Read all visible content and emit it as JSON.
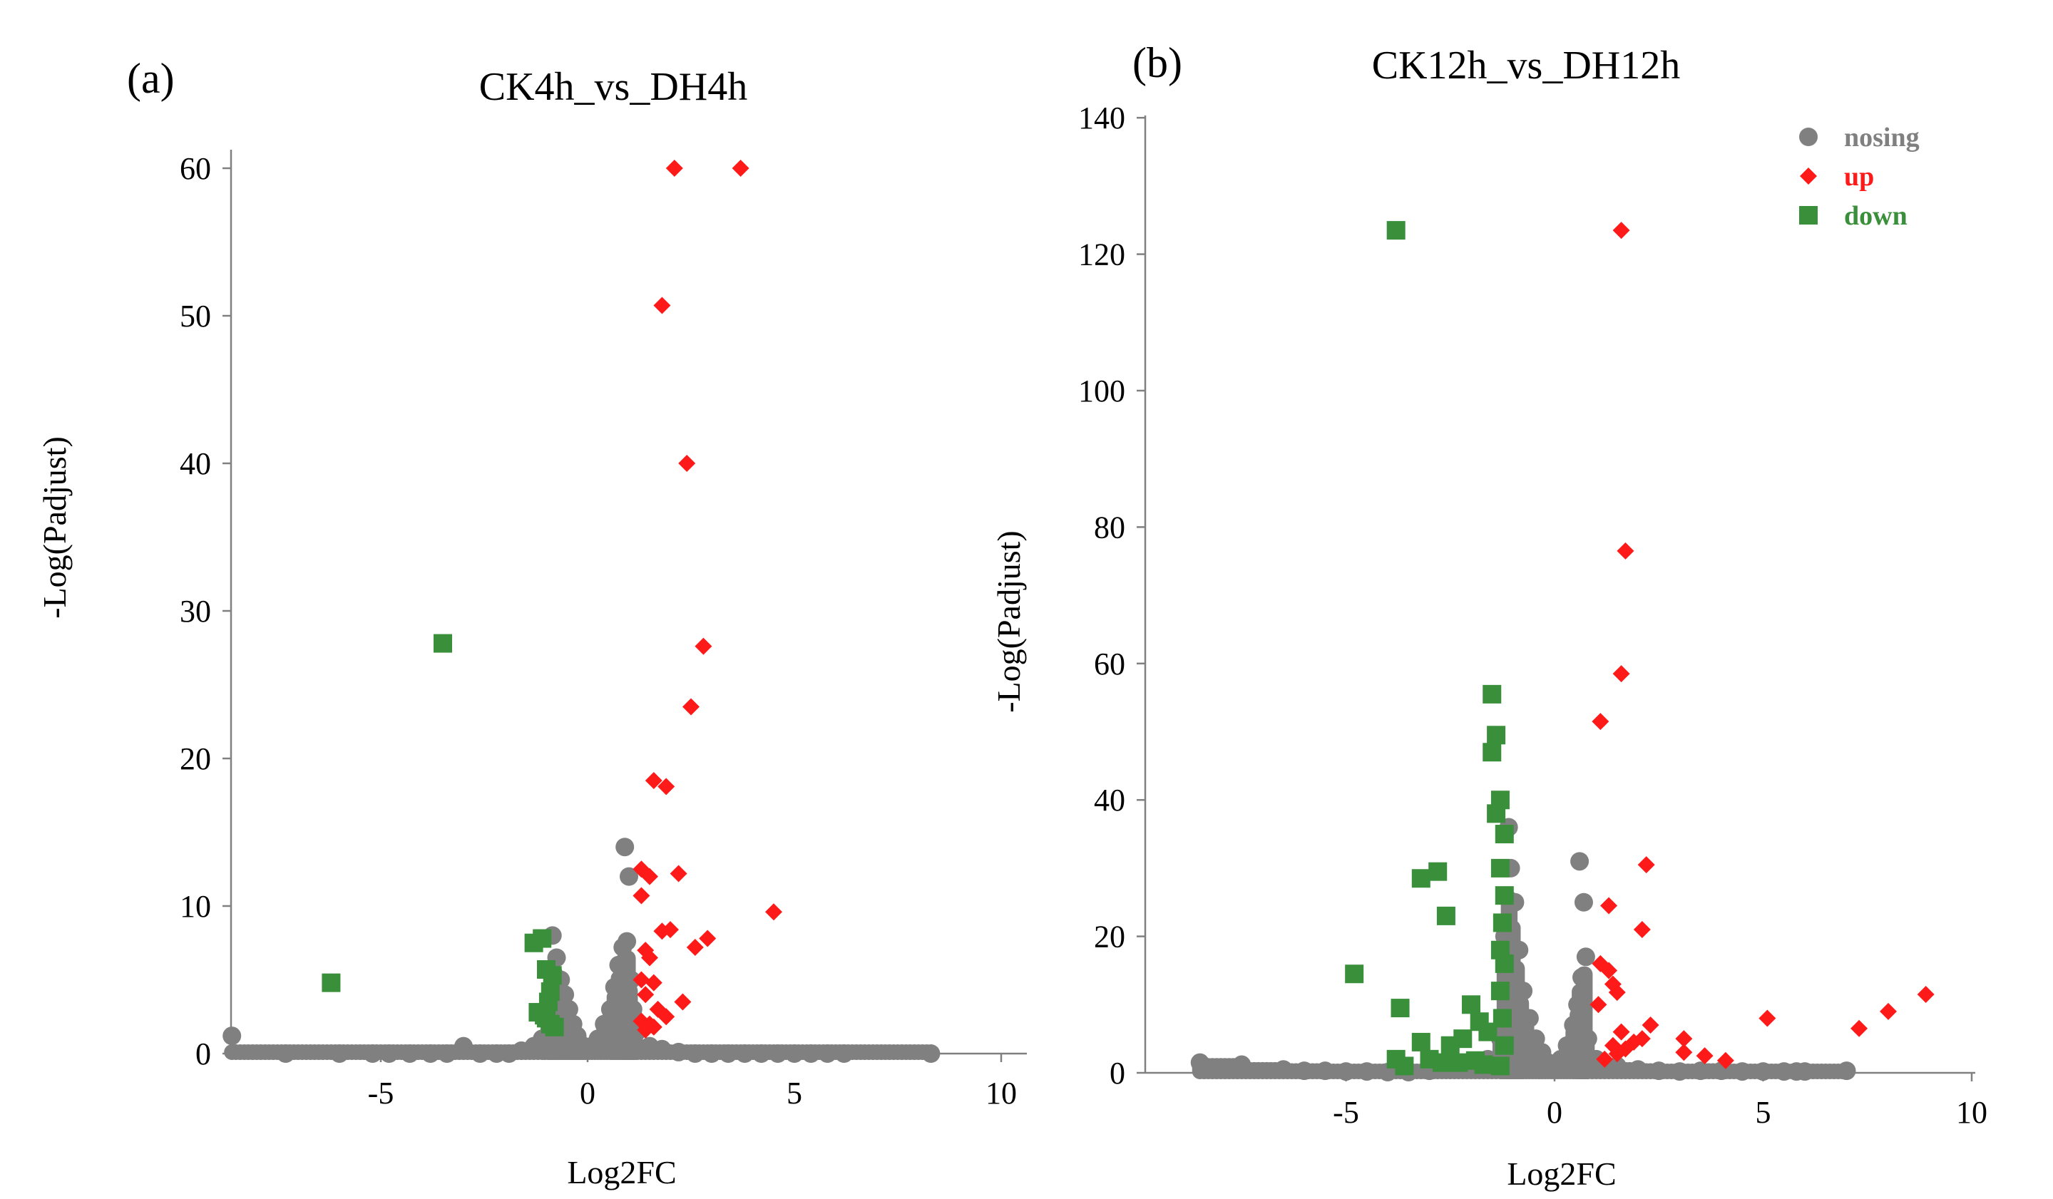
{
  "colors": {
    "nosing": "#808080",
    "up": "#ff1a1a",
    "down": "#3a8f3a"
  },
  "chart_data": [
    {
      "type": "scatter",
      "panel_label": "(a)",
      "title": "CK4h_vs_DH4h",
      "xlabel": "Log2FC",
      "ylabel": "-Log(Padjust)",
      "xlim": [
        -8.5,
        10.5
      ],
      "ylim": [
        0,
        61
      ],
      "xticks": [
        -5,
        0,
        5,
        10
      ],
      "yticks": [
        0,
        10,
        20,
        30,
        40,
        50,
        60
      ],
      "legend": null,
      "series": [
        {
          "name": "nosing",
          "points": [
            [
              -8.6,
              1.2
            ],
            [
              -7.3,
              0
            ],
            [
              -6,
              0
            ],
            [
              -5.2,
              0
            ],
            [
              -4.8,
              0
            ],
            [
              -4.3,
              0
            ],
            [
              -3.8,
              0
            ],
            [
              -3.4,
              0
            ],
            [
              -3,
              0.5
            ],
            [
              -2.6,
              0
            ],
            [
              -2.2,
              0
            ],
            [
              -1.9,
              0
            ],
            [
              -1.6,
              0.2
            ],
            [
              -1.3,
              0.5
            ],
            [
              -1.1,
              1
            ],
            [
              -0.95,
              2.5
            ],
            [
              -0.88,
              4
            ],
            [
              -0.85,
              8
            ],
            [
              -0.75,
              6.5
            ],
            [
              -0.65,
              5
            ],
            [
              -0.55,
              4
            ],
            [
              -0.45,
              3
            ],
            [
              -0.35,
              2
            ],
            [
              -0.25,
              1.2
            ],
            [
              -0.15,
              0.6
            ],
            [
              -0.05,
              0.3
            ],
            [
              0.1,
              0.5
            ],
            [
              0.25,
              1
            ],
            [
              0.4,
              2
            ],
            [
              0.55,
              3
            ],
            [
              0.65,
              4.5
            ],
            [
              0.75,
              6
            ],
            [
              0.85,
              7.2
            ],
            [
              0.95,
              7.6
            ],
            [
              0.9,
              14
            ],
            [
              1,
              12
            ],
            [
              1.05,
              5
            ],
            [
              1.1,
              3
            ],
            [
              1.2,
              1.5
            ],
            [
              1.5,
              0.5
            ],
            [
              1.8,
              0.3
            ],
            [
              2.2,
              0.1
            ],
            [
              2.6,
              0
            ],
            [
              3,
              0
            ],
            [
              3.4,
              0
            ],
            [
              3.8,
              0
            ],
            [
              4.2,
              0
            ],
            [
              4.6,
              0
            ],
            [
              5,
              0
            ],
            [
              5.4,
              0
            ],
            [
              5.8,
              0
            ],
            [
              6.2,
              0
            ],
            [
              8.3,
              0
            ]
          ]
        },
        {
          "name": "up",
          "points": [
            [
              2.1,
              60
            ],
            [
              3.7,
              60
            ],
            [
              1.8,
              50.7
            ],
            [
              2.4,
              40
            ],
            [
              2.8,
              27.6
            ],
            [
              2.5,
              23.5
            ],
            [
              1.6,
              18.5
            ],
            [
              1.9,
              18.1
            ],
            [
              1.3,
              12.5
            ],
            [
              1.5,
              12
            ],
            [
              2.2,
              12.2
            ],
            [
              1.3,
              10.7
            ],
            [
              4.5,
              9.6
            ],
            [
              1.8,
              8.3
            ],
            [
              2,
              8.4
            ],
            [
              2.9,
              7.8
            ],
            [
              2.6,
              7.2
            ],
            [
              1.4,
              7
            ],
            [
              1.5,
              6.5
            ],
            [
              1.3,
              5
            ],
            [
              1.6,
              4.8
            ],
            [
              1.4,
              4
            ],
            [
              2.3,
              3.5
            ],
            [
              1.7,
              3
            ],
            [
              1.9,
              2.5
            ],
            [
              1.3,
              2.2
            ],
            [
              1.5,
              2
            ],
            [
              1.6,
              1.8
            ],
            [
              1.4,
              1.6
            ]
          ]
        },
        {
          "name": "down",
          "points": [
            [
              -3.5,
              27.8
            ],
            [
              -6.2,
              4.8
            ],
            [
              -1.3,
              7.5
            ],
            [
              -1.1,
              7.8
            ],
            [
              -1,
              5.7
            ],
            [
              -0.85,
              5.3
            ],
            [
              -0.9,
              4.2
            ],
            [
              -0.95,
              3.5
            ],
            [
              -1.2,
              2.8
            ],
            [
              -1.05,
              2.6
            ],
            [
              -0.9,
              2
            ],
            [
              -1,
              2.4
            ],
            [
              -0.8,
              1.8
            ]
          ]
        }
      ]
    },
    {
      "type": "scatter",
      "panel_label": "(b)",
      "title": "CK12h_vs_DH12h",
      "xlabel": "Log2FC",
      "ylabel": "-Log(Padjust)",
      "xlim": [
        -9.8,
        10.3
      ],
      "ylim": [
        0,
        140
      ],
      "xticks": [
        -5,
        0,
        5,
        10
      ],
      "yticks": [
        0,
        20,
        40,
        60,
        80,
        100,
        120,
        140
      ],
      "legend": [
        "nosing",
        "up",
        "down"
      ],
      "series": [
        {
          "name": "nosing",
          "points": [
            [
              -8.5,
              1.5
            ],
            [
              -7.5,
              1.2
            ],
            [
              -6.5,
              0.5
            ],
            [
              -6,
              0.3
            ],
            [
              -5.5,
              0.3
            ],
            [
              -5,
              0.2
            ],
            [
              -4.5,
              0.2
            ],
            [
              -4,
              0.1
            ],
            [
              -3.5,
              0.1
            ],
            [
              -3,
              0.3
            ],
            [
              -2.5,
              0.5
            ],
            [
              -2,
              1
            ],
            [
              -1.6,
              2
            ],
            [
              -1.3,
              5
            ],
            [
              -1.2,
              20
            ],
            [
              -1.1,
              36
            ],
            [
              -1.05,
              30
            ],
            [
              -0.95,
              25
            ],
            [
              -0.85,
              18
            ],
            [
              -0.75,
              12
            ],
            [
              -0.6,
              8
            ],
            [
              -0.45,
              5
            ],
            [
              -0.3,
              3
            ],
            [
              -0.15,
              1.5
            ],
            [
              0,
              1
            ],
            [
              0.15,
              2
            ],
            [
              0.3,
              4
            ],
            [
              0.45,
              7
            ],
            [
              0.55,
              10
            ],
            [
              0.65,
              14
            ],
            [
              0.75,
              17
            ],
            [
              0.6,
              31
            ],
            [
              0.7,
              25
            ],
            [
              0.8,
              5
            ],
            [
              1,
              2
            ],
            [
              1.5,
              1
            ],
            [
              2,
              0.5
            ],
            [
              2.5,
              0.3
            ],
            [
              3,
              0.2
            ],
            [
              3.5,
              0.3
            ],
            [
              4,
              0.3
            ],
            [
              4.5,
              0.2
            ],
            [
              5,
              0.2
            ],
            [
              5.5,
              0.2
            ],
            [
              5.8,
              0.2
            ],
            [
              6,
              0.2
            ],
            [
              7,
              0.3
            ]
          ]
        },
        {
          "name": "up",
          "points": [
            [
              1.6,
              123.5
            ],
            [
              1.7,
              76.5
            ],
            [
              1.6,
              58.5
            ],
            [
              1.1,
              51.5
            ],
            [
              2.2,
              30.5
            ],
            [
              1.3,
              24.5
            ],
            [
              2.1,
              21
            ],
            [
              1.4,
              13
            ],
            [
              1.5,
              11.8
            ],
            [
              1.1,
              16
            ],
            [
              1.3,
              15
            ],
            [
              1.05,
              10
            ],
            [
              8.9,
              11.5
            ],
            [
              8,
              9
            ],
            [
              7.3,
              6.5
            ],
            [
              5.1,
              8
            ],
            [
              2.3,
              7
            ],
            [
              3.1,
              5
            ],
            [
              3.1,
              3
            ],
            [
              2.1,
              5
            ],
            [
              1.9,
              4.5
            ],
            [
              1.6,
              6
            ],
            [
              1.4,
              4
            ],
            [
              1.2,
              2
            ],
            [
              3.6,
              2.5
            ],
            [
              4.1,
              1.8
            ],
            [
              1.5,
              2.8
            ],
            [
              1.7,
              3.5
            ]
          ]
        },
        {
          "name": "down",
          "points": [
            [
              -3.8,
              123.5
            ],
            [
              -1.5,
              55.5
            ],
            [
              -1.4,
              49.5
            ],
            [
              -1.5,
              47
            ],
            [
              -1.3,
              40
            ],
            [
              -1.4,
              38
            ],
            [
              -1.2,
              35
            ],
            [
              -1.3,
              30
            ],
            [
              -1.2,
              26
            ],
            [
              -1.25,
              22
            ],
            [
              -1.3,
              18
            ],
            [
              -1.2,
              16
            ],
            [
              -1.3,
              12
            ],
            [
              -1.25,
              8
            ],
            [
              -1.2,
              4
            ],
            [
              -1.3,
              1
            ],
            [
              -2.8,
              29.5
            ],
            [
              -3.2,
              28.5
            ],
            [
              -2.6,
              23
            ],
            [
              -4.8,
              14.5
            ],
            [
              -3.7,
              9.5
            ],
            [
              -2,
              10
            ],
            [
              -1.8,
              7.5
            ],
            [
              -1.6,
              6
            ],
            [
              -2.2,
              5
            ],
            [
              -2.5,
              4
            ],
            [
              -3.2,
              4.5
            ],
            [
              -3,
              2
            ],
            [
              -2.7,
              1.5
            ],
            [
              -3.8,
              2
            ],
            [
              -3.6,
              1
            ],
            [
              -2.3,
              1.5
            ],
            [
              -1.9,
              1.8
            ],
            [
              -1.7,
              1.2
            ]
          ]
        }
      ]
    }
  ]
}
